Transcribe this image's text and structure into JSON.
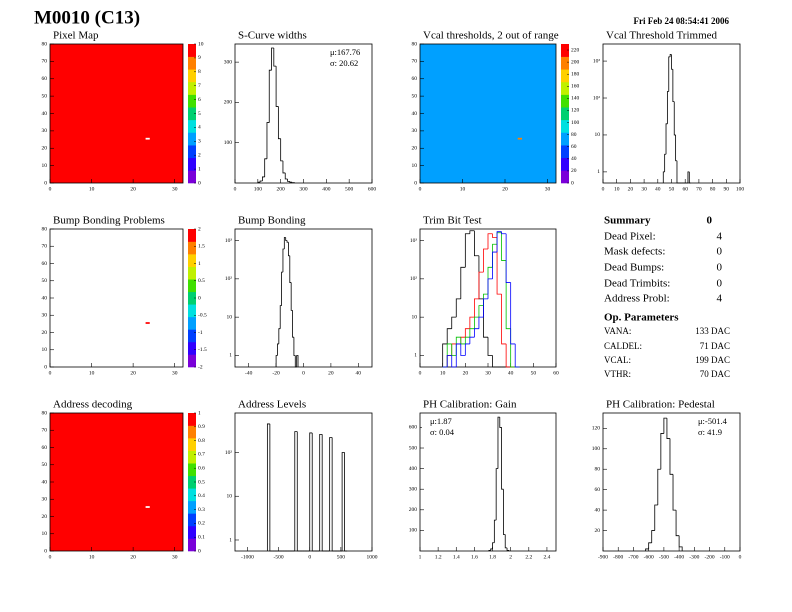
{
  "header": {
    "title": "M0010 (C13)",
    "date": "Fri Feb 24 08:54:41 2006"
  },
  "summary": {
    "title": "Summary",
    "total": "0",
    "rows": [
      [
        "Dead Pixel:",
        "4"
      ],
      [
        "Mask defects:",
        "0"
      ],
      [
        "Dead Bumps:",
        "0"
      ],
      [
        "Dead Trimbits:",
        "0"
      ],
      [
        "Address Probl:",
        "4"
      ]
    ],
    "op_title": "Op. Parameters",
    "op_rows": [
      [
        "VANA:",
        "133 DAC"
      ],
      [
        "CALDEL:",
        "71 DAC"
      ],
      [
        "VCAL:",
        "199 DAC"
      ],
      [
        "VTHR:",
        "70 DAC"
      ]
    ]
  },
  "chart_data": [
    {
      "type": "heatmap",
      "title": "Pixel Map",
      "xlim": [
        0,
        32
      ],
      "xticks": [
        0,
        10,
        20,
        30
      ],
      "ylim": [
        0,
        80
      ],
      "yticks": [
        0,
        10,
        20,
        30,
        40,
        50,
        60,
        70,
        80
      ],
      "zlim": [
        0,
        10
      ],
      "zticks": [
        0,
        1,
        2,
        3,
        4,
        5,
        6,
        7,
        8,
        9,
        10
      ],
      "default_value": 10,
      "cells": [
        {
          "x": 23,
          "y": 25,
          "value": 0
        }
      ],
      "palette": [
        "#7a00d9",
        "#3000ff",
        "#0040ff",
        "#00a0ff",
        "#00e0e0",
        "#00d070",
        "#40e000",
        "#c0f000",
        "#ffd000",
        "#ff8000",
        "#ff0000"
      ]
    },
    {
      "type": "histogram",
      "title": "S-Curve widths",
      "xlim": [
        0,
        600
      ],
      "xticks": [
        0,
        100,
        200,
        300,
        400,
        500,
        600
      ],
      "ylim": [
        0,
        345
      ],
      "yticks": [
        100,
        200,
        300
      ],
      "stats": [
        "μ:167.76",
        "σ: 20.62"
      ],
      "color": "#000000",
      "bins": [
        100,
        110,
        120,
        130,
        140,
        150,
        160,
        170,
        180,
        190,
        200,
        210,
        220,
        230,
        240,
        250,
        260
      ],
      "values": [
        2,
        5,
        15,
        60,
        150,
        280,
        335,
        290,
        190,
        110,
        55,
        25,
        10,
        4,
        2,
        1
      ]
    },
    {
      "type": "heatmap",
      "title": "Vcal thresholds, 2 out of range",
      "xlim": [
        0,
        32
      ],
      "xticks": [
        0,
        10,
        20,
        30
      ],
      "ylim": [
        0,
        80
      ],
      "yticks": [
        0,
        10,
        20,
        30,
        40,
        50,
        60,
        70,
        80
      ],
      "zlim": [
        0,
        230
      ],
      "zticks": [
        0,
        20,
        40,
        60,
        80,
        100,
        120,
        140,
        160,
        180,
        200,
        220
      ],
      "default_value": 70,
      "cells": [
        {
          "x": 23,
          "y": 25,
          "value": 200
        }
      ],
      "palette": [
        "#7a00d9",
        "#3000ff",
        "#0040ff",
        "#00a0ff",
        "#00e0e0",
        "#00d070",
        "#40e000",
        "#c0f000",
        "#ffd000",
        "#ff8000",
        "#ff0000"
      ]
    },
    {
      "type": "histogram",
      "title": "Vcal Threshold Trimmed",
      "log_y": true,
      "xlim": [
        0,
        100
      ],
      "xticks": [
        0,
        10,
        20,
        30,
        40,
        50,
        60,
        70,
        80,
        90,
        100
      ],
      "ylim": [
        0.5,
        2900
      ],
      "yticks": [
        1,
        10,
        {
          "value": 100,
          "label": "10²"
        },
        {
          "value": 1000,
          "label": "10³"
        }
      ],
      "color": "#000000",
      "bins": [
        44,
        45,
        46,
        47,
        48,
        49,
        50,
        51,
        52,
        53,
        54,
        55,
        56,
        57,
        58,
        59,
        60,
        61,
        62,
        63,
        64
      ],
      "values": [
        1,
        3,
        20,
        150,
        1300,
        1500,
        600,
        80,
        10,
        2,
        0,
        0,
        0,
        0,
        0,
        0,
        0,
        0,
        1,
        0
      ]
    },
    {
      "type": "heatmap",
      "title": "Bump Bonding Problems",
      "xlim": [
        0,
        32
      ],
      "xticks": [
        0,
        10,
        20,
        30
      ],
      "ylim": [
        0,
        80
      ],
      "yticks": [
        0,
        10,
        20,
        30,
        40,
        50,
        60,
        70,
        80
      ],
      "zlim": [
        -2,
        2
      ],
      "zticks": [
        -2,
        -1.5,
        -1,
        -0.5,
        0,
        0.5,
        1,
        1.5,
        2
      ],
      "cells": [
        {
          "x": 23,
          "y": 25,
          "value": 2
        }
      ],
      "palette": [
        "#7a00d9",
        "#3000ff",
        "#0040ff",
        "#00a0ff",
        "#00e0e0",
        "#00d070",
        "#40e000",
        "#c0f000",
        "#ffd000",
        "#ff8000",
        "#ff0000"
      ]
    },
    {
      "type": "histogram",
      "title": "Bump Bonding",
      "log_y": true,
      "xlim": [
        -50,
        50
      ],
      "xticks": [
        -40,
        -20,
        0,
        20,
        40
      ],
      "ylim": [
        0.5,
        2000
      ],
      "yticks": [
        1,
        10,
        {
          "value": 100,
          "label": "10²"
        },
        {
          "value": 1000,
          "label": "10³"
        }
      ],
      "color": "#000000",
      "bins": [
        -20,
        -19,
        -18,
        -17,
        -16,
        -15,
        -14,
        -13,
        -12,
        -11,
        -10,
        -9,
        -8,
        -7,
        -6,
        -5,
        -4
      ],
      "values": [
        1,
        2,
        5,
        20,
        150,
        600,
        1200,
        1000,
        900,
        400,
        80,
        15,
        3,
        1,
        0,
        1
      ]
    },
    {
      "type": "histogram",
      "title": "Trim Bit Test",
      "log_y": true,
      "xlim": [
        0,
        60
      ],
      "xticks": [
        0,
        10,
        20,
        30,
        40,
        50,
        60
      ],
      "ylim": [
        0.5,
        2000
      ],
      "yticks": [
        1,
        10,
        {
          "value": 100,
          "label": "10²"
        },
        {
          "value": 1000,
          "label": "10³"
        }
      ],
      "bins": [
        10,
        12,
        14,
        16,
        18,
        20,
        22,
        24,
        26,
        28,
        30,
        32,
        34,
        36,
        38,
        40,
        42,
        44
      ],
      "series": [
        {
          "color": "#000000",
          "values": [
            2,
            5,
            10,
            30,
            200,
            1500,
            1800,
            400,
            30,
            3,
            1,
            0,
            0,
            0,
            0,
            0,
            0
          ]
        },
        {
          "color": "#ff0000",
          "values": [
            0,
            1,
            2,
            2,
            3,
            5,
            10,
            30,
            150,
            600,
            1500,
            1200,
            40,
            2,
            0,
            0,
            0
          ]
        },
        {
          "color": "#00c000",
          "values": [
            0,
            2,
            1,
            3,
            2,
            3,
            5,
            10,
            20,
            40,
            200,
            800,
            1600,
            300,
            5,
            0,
            0
          ]
        },
        {
          "color": "#0000ff",
          "values": [
            0,
            1,
            0,
            2,
            1,
            2,
            3,
            5,
            10,
            30,
            100,
            500,
            1700,
            1500,
            80,
            2,
            0
          ]
        }
      ]
    },
    {
      "type": "heatmap",
      "title": "Address decoding",
      "xlim": [
        0,
        32
      ],
      "xticks": [
        0,
        10,
        20,
        30
      ],
      "ylim": [
        0,
        80
      ],
      "yticks": [
        0,
        10,
        20,
        30,
        40,
        50,
        60,
        70,
        80
      ],
      "zlim": [
        0,
        1
      ],
      "zticks": [
        0,
        0.1,
        0.2,
        0.3,
        0.4,
        0.5,
        0.6,
        0.7,
        0.8,
        0.9,
        1
      ],
      "default_value": 1,
      "cells": [
        {
          "x": 23,
          "y": 25,
          "value": 0
        }
      ],
      "palette": [
        "#7a00d9",
        "#3000ff",
        "#0040ff",
        "#00a0ff",
        "#00e0e0",
        "#00d070",
        "#40e000",
        "#c0f000",
        "#ffd000",
        "#ff8000",
        "#ff0000"
      ]
    },
    {
      "type": "histogram",
      "title": "Address Levels",
      "log_y": true,
      "xlim": [
        -1200,
        1000
      ],
      "xticks": [
        -1000,
        -500,
        0,
        500,
        1000
      ],
      "ylim": [
        0.56,
        800
      ],
      "yticks": [
        1,
        10,
        {
          "value": 100,
          "label": "10²"
        }
      ],
      "color": "#000000",
      "bins": [
        -680,
        -640,
        -600,
        -560,
        -520,
        -480,
        -440,
        -400,
        -360,
        -320,
        -280,
        -240,
        -200,
        -160,
        -120,
        -80,
        -40,
        0,
        40,
        80,
        120,
        160,
        200,
        240,
        280,
        320,
        360,
        400,
        440,
        480,
        520,
        560,
        600
      ],
      "values": [
        450,
        0,
        0,
        0,
        0,
        0,
        0,
        0,
        0,
        0,
        0,
        300,
        0,
        0,
        0,
        0,
        0,
        280,
        0,
        0,
        0,
        260,
        0,
        0,
        0,
        220,
        0,
        0,
        0,
        0,
        100,
        0
      ]
    },
    {
      "type": "histogram",
      "title": "PH Calibration: Gain",
      "xlim": [
        1,
        2.5
      ],
      "xticks": [
        1,
        1.2,
        1.4,
        1.6,
        1.8,
        2,
        2.2,
        2.4
      ],
      "ylim": [
        0,
        670
      ],
      "yticks": [
        100,
        200,
        300,
        400,
        500,
        600
      ],
      "stats": [
        "μ:1.87",
        "σ: 0.04"
      ],
      "color": "#000000",
      "bins": [
        1.76,
        1.78,
        1.8,
        1.82,
        1.84,
        1.86,
        1.88,
        1.9,
        1.92,
        1.94,
        1.96,
        1.98
      ],
      "values": [
        3,
        10,
        40,
        150,
        400,
        650,
        600,
        300,
        80,
        15,
        3
      ]
    },
    {
      "type": "histogram",
      "title": "PH Calibration: Pedestal",
      "xlim": [
        -900,
        0
      ],
      "xticks": [
        -900,
        -800,
        -700,
        -600,
        -500,
        -400,
        -300,
        -200,
        -100,
        0
      ],
      "ylim": [
        0,
        135
      ],
      "yticks": [
        20,
        40,
        60,
        80,
        100,
        120
      ],
      "stats": [
        "μ:-501.4",
        "σ: 41.9"
      ],
      "color": "#000000",
      "bins": [
        -620,
        -600,
        -580,
        -560,
        -540,
        -520,
        -500,
        -480,
        -460,
        -440,
        -420,
        -400,
        -380
      ],
      "values": [
        2,
        8,
        20,
        45,
        80,
        115,
        130,
        110,
        75,
        40,
        15,
        4
      ]
    }
  ]
}
